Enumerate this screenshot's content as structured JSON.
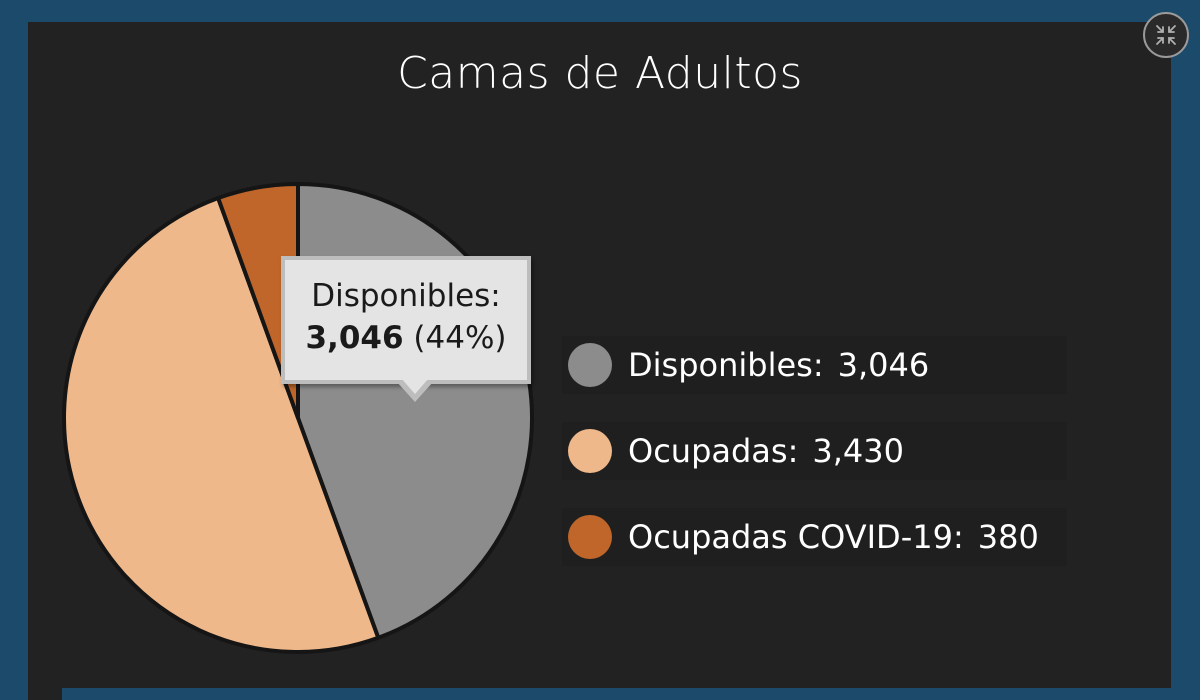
{
  "title": "Camas de Adultos",
  "controls": {
    "collapse_icon": "collapse-arrows-icon"
  },
  "colors": {
    "background": "#1b4a6b",
    "panel": "#222222",
    "disponibles": "#8c8c8c",
    "ocupadas": "#efb88a",
    "ocupadas_covid": "#c0662a"
  },
  "chart_data": {
    "type": "pie",
    "title": "Camas de Adultos",
    "categories": [
      "Disponibles",
      "Ocupadas",
      "Ocupadas COVID-19"
    ],
    "values": [
      3046,
      3430,
      380
    ],
    "colors": [
      "#8c8c8c",
      "#efb88a",
      "#c0662a"
    ],
    "legend_position": "right"
  },
  "legend": [
    {
      "label": "Disponibles:",
      "value": "3,046"
    },
    {
      "label": "Ocupadas:",
      "value": "3,430"
    },
    {
      "label": "Ocupadas COVID-19:",
      "value": "380"
    }
  ],
  "tooltip": {
    "label": "Disponibles:",
    "value": "3,046",
    "percent": "(44%)"
  }
}
